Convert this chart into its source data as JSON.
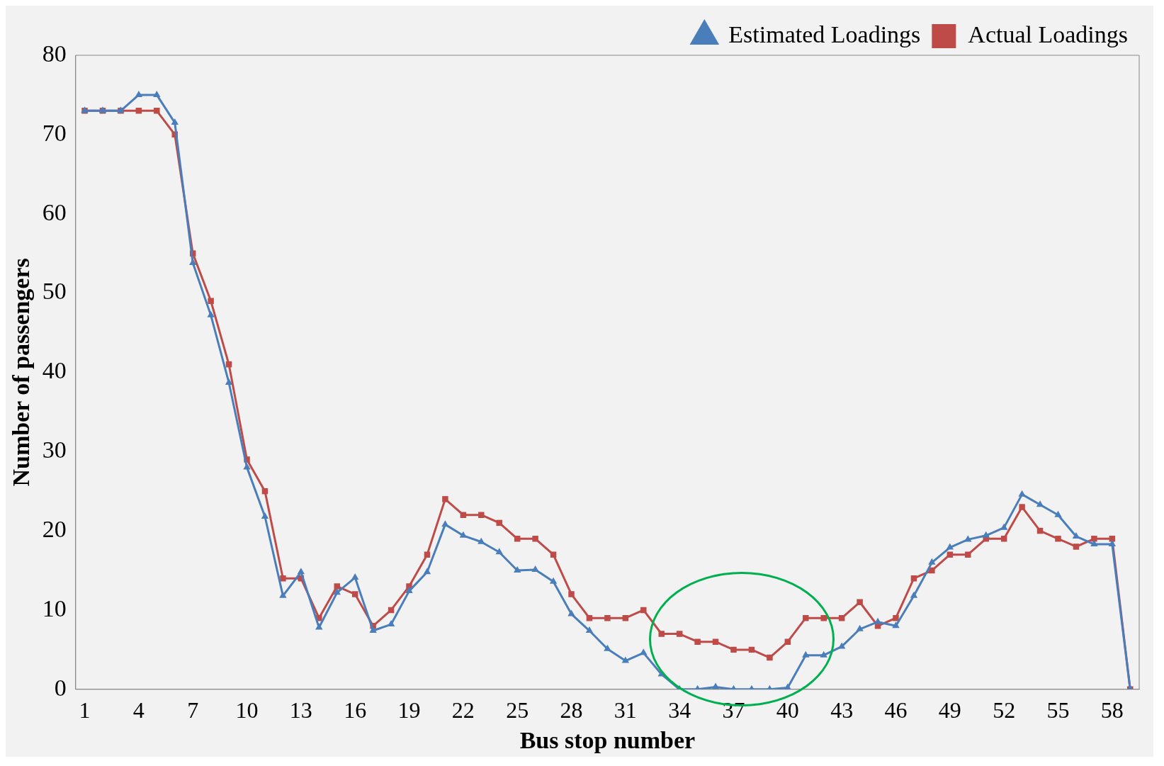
{
  "chart_data": {
    "type": "line",
    "xlabel": "Bus stop number",
    "ylabel": "Number of passengers",
    "categories": [
      "1",
      null,
      null,
      "4",
      null,
      null,
      "7",
      null,
      null,
      "10",
      null,
      null,
      "13",
      null,
      null,
      "16",
      null,
      null,
      "19",
      null,
      null,
      "22",
      null,
      null,
      "25",
      null,
      null,
      "28",
      null,
      null,
      "31",
      null,
      null,
      "34",
      null,
      null,
      "37",
      null,
      null,
      "40",
      null,
      null,
      "43",
      null,
      null,
      "46",
      null,
      null,
      "49",
      null,
      null,
      "52",
      null,
      null,
      "55",
      null,
      null,
      "58",
      null
    ],
    "series": [
      {
        "name": "Estimated Loadings",
        "color": "#4a7ebb",
        "marker": "triangle",
        "values": [
          73,
          73,
          73,
          75,
          75,
          71.5,
          53.8,
          47.2,
          38.7,
          28,
          21.8,
          11.8,
          14.8,
          7.8,
          12.2,
          14.1,
          7.4,
          8.2,
          12.4,
          14.8,
          20.8,
          19.4,
          18.6,
          17.3,
          15,
          15.1,
          13.6,
          9.5,
          7.4,
          5.1,
          3.6,
          4.6,
          1.9,
          0,
          0,
          0.3,
          0,
          0,
          0,
          0.2,
          4.3,
          4.3,
          5.4,
          7.6,
          8.5,
          8,
          11.8,
          16,
          17.9,
          18.9,
          19.4,
          20.4,
          24.6,
          23.3,
          22,
          19.3,
          18.3,
          18.3,
          0
        ]
      },
      {
        "name": "Actual Loadings",
        "color": "#be4b48",
        "marker": "square",
        "values": [
          73,
          73,
          73,
          73,
          73,
          70,
          55,
          49,
          41,
          29,
          25,
          14,
          14,
          9,
          13,
          12,
          8,
          10,
          13,
          17,
          24,
          22,
          22,
          21,
          19,
          19,
          17,
          12,
          9,
          9,
          9,
          10,
          7,
          7,
          6,
          6,
          5,
          5,
          4,
          6,
          9,
          9,
          9,
          11,
          8,
          9,
          14,
          15,
          17,
          17,
          19,
          19,
          23,
          20,
          19,
          18,
          19,
          19,
          0
        ]
      }
    ],
    "ylim": [
      0,
      80
    ],
    "yticks": [
      0,
      10,
      20,
      30,
      40,
      50,
      60,
      70,
      80
    ],
    "grid": false,
    "legend": "top right",
    "line_style": "solid"
  }
}
